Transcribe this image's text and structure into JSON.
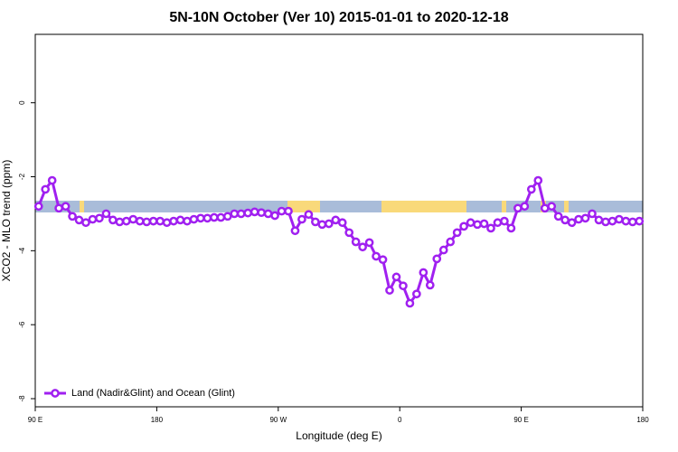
{
  "chart_data": {
    "type": "line",
    "title": "5N-10N October (Ver 10)   2015-01-01 to 2020-12-18",
    "x_label": "Longitude (deg E)",
    "y_label": "XCO2 - MLO trend (ppm)",
    "xlim": [
      90,
      540
    ],
    "xticks": [
      {
        "value": 90,
        "label": "90 E"
      },
      {
        "value": 180,
        "label": "180"
      },
      {
        "value": 270,
        "label": "90 W"
      },
      {
        "value": 360,
        "label": "0"
      },
      {
        "value": 450,
        "label": "90 E"
      },
      {
        "value": 540,
        "label": "180"
      }
    ],
    "ylim": [
      -8.22,
      1.85
    ],
    "yticks": [
      -8,
      -6,
      -4,
      -2,
      0
    ],
    "legend": "bottom-left",
    "x": [
      92.5,
      97.5,
      102.5,
      107.5,
      112.5,
      117.5,
      122.5,
      127.5,
      132.5,
      137.5,
      142.5,
      147.5,
      152.5,
      157.5,
      162.5,
      167.5,
      172.5,
      177.5,
      182.5,
      187.5,
      192.5,
      197.5,
      202.5,
      207.5,
      212.5,
      217.5,
      222.5,
      227.5,
      232.5,
      237.5,
      242.5,
      247.5,
      252.5,
      257.5,
      262.5,
      267.5,
      272.5,
      277.5,
      282.5,
      287.5,
      292.5,
      297.5,
      302.5,
      307.5,
      312.5,
      317.5,
      322.5,
      327.5,
      332.5,
      337.5,
      342.5,
      347.5,
      352.5,
      357.5,
      362.5,
      367.5,
      372.5,
      377.5,
      382.5,
      387.5,
      392.5,
      397.5,
      402.5,
      407.5,
      412.5,
      417.5,
      422.5,
      427.5,
      432.5,
      437.5,
      442.5,
      447.5,
      452.5,
      457.5,
      462.5,
      467.5,
      472.5,
      477.5,
      482.5,
      487.5,
      492.5,
      497.5,
      502.5,
      507.5,
      512.5,
      517.5,
      522.5,
      527.5,
      532.5,
      537.5
    ],
    "series": [
      {
        "name": "Land (Nadir&Glint) and Ocean (Glint)",
        "color": "#a020f0",
        "values": [
          -2.8,
          -2.34,
          -2.1,
          -2.85,
          -2.8,
          -3.07,
          -3.17,
          -3.24,
          -3.15,
          -3.12,
          -3.0,
          -3.17,
          -3.22,
          -3.2,
          -3.15,
          -3.2,
          -3.22,
          -3.2,
          -3.2,
          -3.24,
          -3.2,
          -3.17,
          -3.2,
          -3.15,
          -3.12,
          -3.12,
          -3.1,
          -3.1,
          -3.07,
          -3.0,
          -3.0,
          -2.98,
          -2.95,
          -2.97,
          -3.0,
          -3.05,
          -2.93,
          -2.93,
          -3.46,
          -3.15,
          -3.02,
          -3.22,
          -3.29,
          -3.27,
          -3.17,
          -3.24,
          -3.51,
          -3.76,
          -3.9,
          -3.78,
          -4.15,
          -4.24,
          -5.07,
          -4.71,
          -4.95,
          -5.42,
          -5.17,
          -4.59,
          -4.93,
          -4.22,
          -3.98,
          -3.76,
          -3.51,
          -3.34,
          -3.24,
          -3.29,
          -3.27,
          -3.39,
          -3.24,
          -3.2,
          -3.39,
          -2.85,
          -2.8,
          -2.34,
          -2.1,
          -2.85,
          -2.8,
          -3.07,
          -3.17,
          -3.24,
          -3.15,
          -3.12,
          -3.0,
          -3.17,
          -3.22,
          -3.2,
          -3.15,
          -3.2,
          -3.22,
          -3.2
        ]
      }
    ]
  }
}
